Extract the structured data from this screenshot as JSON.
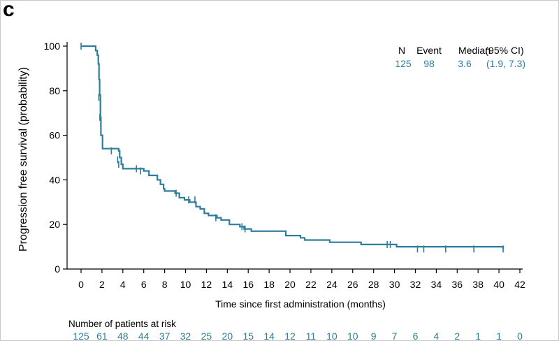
{
  "panel_label": "c",
  "colors": {
    "curve": "#2e7d9a",
    "axis": "#000000",
    "numbers": "#2e7d9a"
  },
  "chart_data": {
    "type": "line",
    "subtype": "kaplan-meier",
    "xlabel": "Time since first administration (months)",
    "ylabel": "Progression free survival (probability)",
    "xlim": [
      0,
      42
    ],
    "ylim": [
      0,
      100
    ],
    "xticks": [
      0,
      2,
      4,
      6,
      8,
      10,
      12,
      14,
      16,
      18,
      20,
      22,
      24,
      26,
      28,
      30,
      32,
      34,
      36,
      38,
      40,
      42
    ],
    "yticks": [
      0,
      20,
      40,
      60,
      80,
      100
    ],
    "legend": {
      "headers": [
        "N",
        "Event",
        "Median",
        "(95% CI)"
      ],
      "values": [
        "125",
        "98",
        "3.6",
        "(1.9, 7.3)"
      ]
    },
    "curve": {
      "x": [
        0,
        1.2,
        1.4,
        1.55,
        1.65,
        1.72,
        1.78,
        1.85,
        1.9,
        2.05,
        3.6,
        3.7,
        3.85,
        4.0,
        6.0,
        6.5,
        7.3,
        7.6,
        7.9,
        8.0,
        9.0,
        9.4,
        9.9,
        10.4,
        11.0,
        11.4,
        11.8,
        12.2,
        13.0,
        13.4,
        14.2,
        15.2,
        15.6,
        16.3,
        19.6,
        21.0,
        21.4,
        23.8,
        26.8,
        30.2,
        40.4
      ],
      "y": [
        100,
        100,
        98,
        96,
        92,
        85,
        78,
        68,
        60,
        54,
        53,
        50,
        47,
        45,
        44,
        42,
        40,
        38,
        36,
        35,
        34,
        32,
        31,
        30,
        28,
        27,
        25,
        24,
        23,
        22,
        20,
        19,
        18,
        17,
        15,
        14,
        13,
        12,
        11,
        10,
        9
      ]
    },
    "censor_marks": {
      "x": [
        0,
        1.7,
        1.8,
        2.9,
        3.5,
        3.6,
        5.3,
        5.7,
        9.1,
        10.3,
        10.9,
        12.9,
        15.4,
        15.7,
        29.3,
        29.6,
        32.2,
        32.8,
        34.9,
        37.6,
        40.4
      ],
      "y": [
        100,
        77,
        68,
        53,
        49,
        47,
        45,
        44,
        34,
        31,
        31,
        23,
        19,
        18,
        11,
        11,
        9,
        9,
        9,
        9,
        9
      ]
    },
    "at_risk": {
      "title": "Number of patients at risk",
      "times": [
        0,
        2,
        4,
        6,
        8,
        10,
        12,
        14,
        16,
        18,
        20,
        22,
        24,
        26,
        28,
        30,
        32,
        34,
        36,
        38,
        40,
        42
      ],
      "counts": [
        "125",
        "61",
        "48",
        "44",
        "37",
        "32",
        "25",
        "20",
        "15",
        "14",
        "12",
        "11",
        "10",
        "10",
        "9",
        "7",
        "6",
        "4",
        "2",
        "1",
        "1",
        "0"
      ]
    }
  }
}
